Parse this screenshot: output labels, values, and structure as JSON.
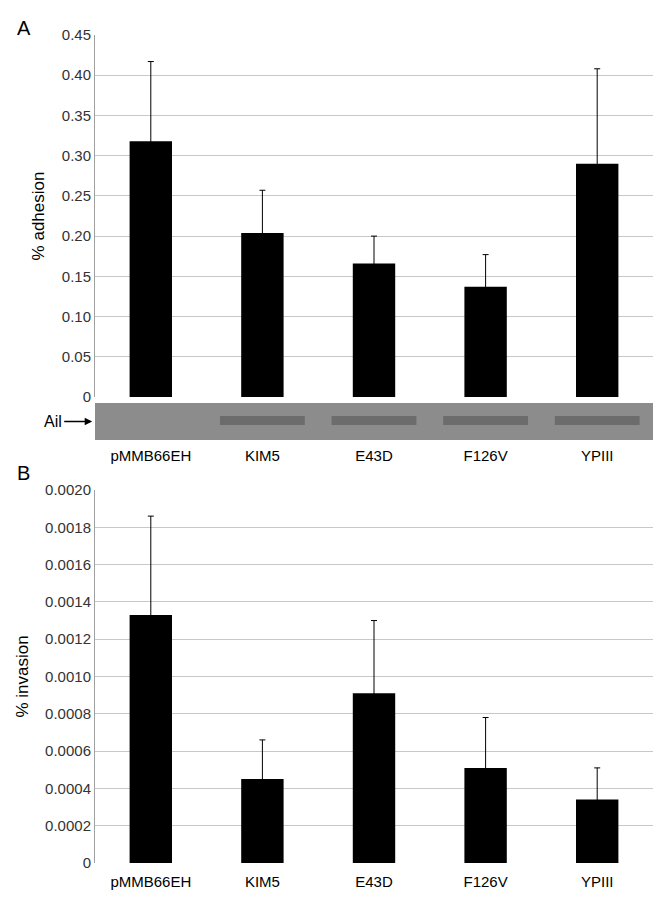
{
  "chart_data": [
    {
      "type": "bar",
      "title": "A",
      "y_label": "% adhesion",
      "categories": [
        "pMMB66EH",
        "KIM5",
        "E43D",
        "F126V",
        "YPIII"
      ],
      "values": [
        0.318,
        0.204,
        0.166,
        0.137,
        0.29
      ],
      "errors": [
        0.099,
        0.053,
        0.034,
        0.04,
        0.118
      ],
      "color": "#000000",
      "ylim": [
        0,
        0.45
      ],
      "yticks": [
        0,
        0.05,
        {
          "value": 0.1,
          "label": "0.10"
        },
        0.15,
        {
          "value": 0.2,
          "label": "0.20"
        },
        0.25,
        {
          "value": 0.3,
          "label": "0.30"
        },
        0.35,
        {
          "value": 0.4,
          "label": "0.40"
        },
        0.45
      ],
      "grid": true,
      "blot_label": "Ail",
      "blot_band": [
        false,
        true,
        true,
        true,
        true
      ]
    },
    {
      "type": "bar",
      "title": "B",
      "y_label": "% invasion",
      "categories": [
        "pMMB66EH",
        "KIM5",
        "E43D",
        "F126V",
        "YPIII"
      ],
      "values": [
        0.00133,
        0.00045,
        0.00091,
        0.00051,
        0.00034
      ],
      "errors": [
        0.00053,
        0.00021,
        0.00039,
        0.00027,
        0.00017
      ],
      "color": "#000000",
      "ylim": [
        0,
        0.002
      ],
      "yticks": [
        0,
        0.0002,
        0.0004,
        0.0006,
        0.0008,
        {
          "value": 0.001,
          "label": "0.0010"
        },
        0.0012,
        0.0014,
        0.0016,
        0.0018,
        {
          "value": 0.002,
          "label": "0.0020"
        }
      ],
      "grid": true
    }
  ]
}
